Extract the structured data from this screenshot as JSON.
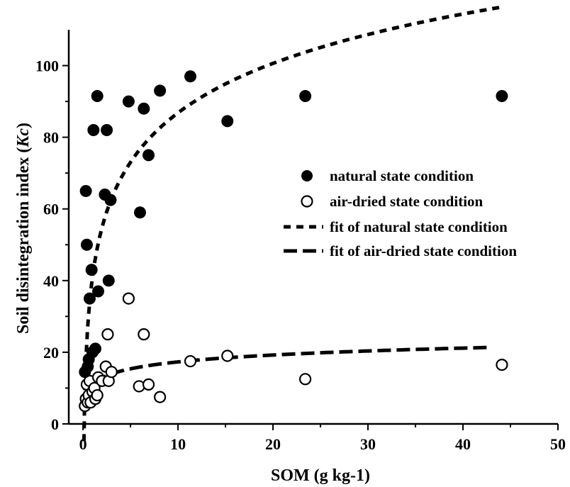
{
  "chart_data": {
    "type": "scatter",
    "xlabel": "SOM (g kg-1)",
    "ylabel_prefix": "Soil disintegration index (",
    "ylabel_italic": "Kc",
    "ylabel_suffix": ")",
    "xlim": [
      -1.5,
      50
    ],
    "ylim": [
      0,
      110
    ],
    "xticks": [
      0,
      10,
      20,
      30,
      40,
      50
    ],
    "yticks": [
      0,
      20,
      40,
      60,
      80,
      100
    ],
    "legend_position": "center-right",
    "series": [
      {
        "name": "natural state condition",
        "marker": "filled-circle",
        "color": "#000000",
        "points": [
          [
            0.2,
            14.5
          ],
          [
            0.3,
            65
          ],
          [
            0.4,
            50
          ],
          [
            0.5,
            16
          ],
          [
            0.6,
            18
          ],
          [
            0.7,
            35
          ],
          [
            0.9,
            43
          ],
          [
            1.0,
            20
          ],
          [
            1.1,
            82
          ],
          [
            1.3,
            21
          ],
          [
            1.5,
            91.5
          ],
          [
            1.6,
            37
          ],
          [
            2.3,
            64
          ],
          [
            2.5,
            82
          ],
          [
            2.7,
            40
          ],
          [
            2.9,
            62.5
          ],
          [
            4.8,
            90
          ],
          [
            6.0,
            59
          ],
          [
            6.4,
            88
          ],
          [
            6.9,
            75
          ],
          [
            8.1,
            93
          ],
          [
            11.3,
            97
          ],
          [
            15.2,
            84.5
          ],
          [
            23.4,
            91.5
          ],
          [
            44.1,
            91.5
          ]
        ]
      },
      {
        "name": "air-dried state condition",
        "marker": "open-circle",
        "color": "#000000",
        "points": [
          [
            0.2,
            5
          ],
          [
            0.3,
            7
          ],
          [
            0.4,
            11
          ],
          [
            0.5,
            6
          ],
          [
            0.6,
            8
          ],
          [
            0.7,
            12
          ],
          [
            0.8,
            6
          ],
          [
            1.0,
            9
          ],
          [
            1.2,
            10
          ],
          [
            1.3,
            7
          ],
          [
            1.5,
            8
          ],
          [
            1.6,
            13
          ],
          [
            2.0,
            12
          ],
          [
            2.4,
            16
          ],
          [
            2.6,
            25
          ],
          [
            2.7,
            12
          ],
          [
            3.0,
            14.5
          ],
          [
            4.8,
            35
          ],
          [
            5.9,
            10.5
          ],
          [
            6.4,
            25
          ],
          [
            6.9,
            11
          ],
          [
            8.1,
            7.5
          ],
          [
            11.3,
            17.5
          ],
          [
            15.2,
            19
          ],
          [
            23.4,
            12.5
          ],
          [
            44.1,
            16.5
          ]
        ]
      },
      {
        "name": "fit of natural state condition",
        "marker": "dashed-line",
        "color": "#000000",
        "fit": {
          "a": 41.0,
          "b": 19.9
        },
        "x_range": [
          0.1,
          44
        ]
      },
      {
        "name": "fit of air-dried state condition",
        "marker": "long-dashed-line",
        "color": "#000000",
        "fit": {
          "a": 10.9,
          "b": 2.78
        },
        "x_range": [
          1.2,
          43
        ]
      }
    ]
  }
}
